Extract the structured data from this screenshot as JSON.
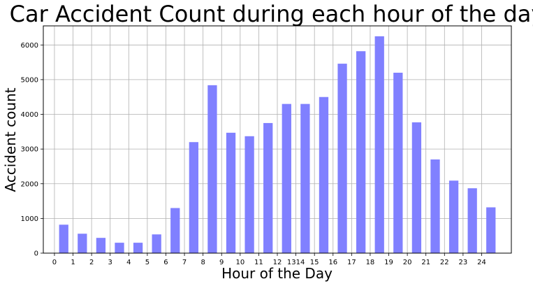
{
  "chart_data": {
    "type": "bar",
    "title": "Car Accident Count during each hour of the day",
    "xlabel": "Hour of the Day",
    "ylabel": "Accident count",
    "x": [
      0.5,
      1.5,
      2.5,
      3.5,
      4.5,
      5.5,
      6.5,
      7.5,
      8.5,
      9.5,
      10.5,
      11.5,
      12.5,
      13.5,
      14.5,
      15.5,
      16.5,
      17.5,
      18.5,
      19.5,
      20.5,
      21.5,
      22.5,
      23.5
    ],
    "values": [
      820,
      560,
      440,
      300,
      300,
      540,
      1300,
      3200,
      4840,
      3470,
      3370,
      3750,
      4300,
      4300,
      4500,
      5460,
      5820,
      6250,
      5200,
      3770,
      2700,
      2090,
      1870,
      1320
    ],
    "xticks": [
      "0",
      "1",
      "2",
      "3",
      "4",
      "5",
      "6",
      "7",
      "8",
      "9",
      "10",
      "11",
      "12",
      "1314",
      "15",
      "16",
      "17",
      "18",
      "19",
      "20",
      "21",
      "22",
      "23",
      "24"
    ],
    "xlim": [
      -0.6,
      24.6
    ],
    "yticks": [
      0,
      1000,
      2000,
      3000,
      4000,
      5000,
      6000
    ],
    "ylim": [
      0,
      6550
    ],
    "grid": true,
    "bar_color": "#8080ff",
    "grid_color": "#b0b0b0"
  }
}
